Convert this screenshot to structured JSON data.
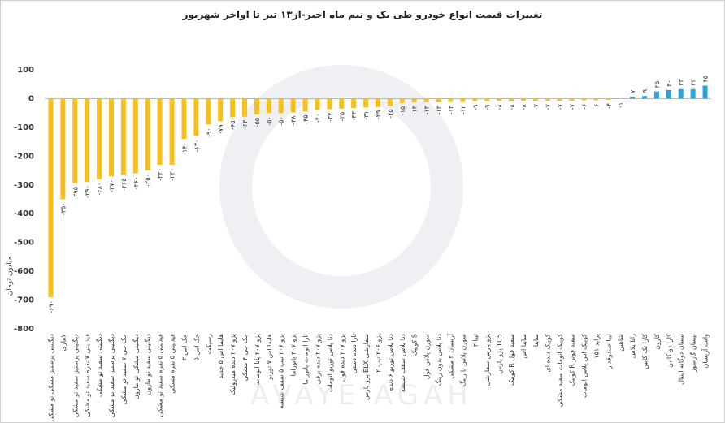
{
  "chart_data": {
    "type": "bar",
    "title": "تغییرات قیمت انواع خودرو طی یک و نیم ماه اخیر-از۱۳ تیر تا اواخر شهریور",
    "y_label": "میلیون تومان",
    "watermark": "AVAYE AGAH",
    "categories": [
      "دیگنیتی پرستیژ مشکی تو مشکی",
      "لاماری",
      "دیگنیتی پرستیژ سفید تو مشکی",
      "فیدلیتی ۷ نفره سفید تو مشکی",
      "دیگنیتی سفید تو مشکی",
      "دیگنیتی پرستیژ سفید تو مشکی",
      "جک جی ۷ سفید تو مشکی",
      "دیگنیتی مشکی تو مازون",
      "دیگنیتی سفید تو مازون",
      "فیدلیتی ۵ نفره سفید تو مشکی",
      "فیدلیتی ۵ نفره مشکی",
      "جک اس ۳",
      "جک اس ۵",
      "رسپکت",
      "هایما اس ۵ جدید",
      "پژو ۲۰۷ دنده هیدرولیک",
      "جک جی ۴ مشکی",
      "پژو ۲۰۷ پانا اتومات",
      "هایما اس ۷ توربو",
      "پژو ۲۰۶ تیپ ۵ سقف شیشه",
      "پژو ۲۰۷ پانوراما",
      "تارا اتومات پانوراما",
      "پژو ۲۰۷ دنده برقی",
      "دنا پلاس توربو اتومات",
      "پژو ۲۰۷ دنده قول",
      "تارا دنده دستی",
      "پژو پارس ELX سفارشی",
      "پژو ۲۰۶ تیپ ۲",
      "دنا پلاس توربو ۶ دنده",
      "دنا پلاس سقف شیشه",
      "کوییک S",
      "سورن پلاس فول",
      "دنا پلاس بدون رینگ",
      "آریسان ۲ مشکی",
      "سورن پلاس با رینگ",
      "تیبا ۲",
      "پژو پارس سفارشی",
      "پژو پارس TU5",
      "کوییک R سفید فول",
      "ساینا اس",
      "ساینا",
      "کوییک دنده ای",
      "کوییک اتومات سفید مشکی",
      "کوییک R سفید فوتر",
      "کوییک اس پلاس اتومات",
      "پراید ۱۵۱",
      "تیبا صندوقدار",
      "شاهین",
      "رانا پلاس",
      "کارا تک کابین",
      "کارون",
      "کارا دو کابین",
      "نیسان دوگانه اینتال",
      "نیسان گازسوز",
      "وانت آریسان"
    ],
    "values": [
      -690,
      -350,
      -295,
      -290,
      -280,
      -270,
      -265,
      -260,
      -250,
      -230,
      -230,
      -140,
      -130,
      -90,
      -79,
      -65,
      -63,
      -55,
      -50,
      -50,
      -48,
      -45,
      -40,
      -37,
      -35,
      -33,
      -31,
      -29,
      -25,
      -15,
      -13,
      -13,
      -13,
      -12,
      -12,
      -9,
      -9,
      -8,
      -8,
      -8,
      -7,
      -7,
      -7,
      -7,
      -6,
      -6,
      -4,
      -1,
      7,
      9,
      25,
      30,
      33,
      33,
      45
    ],
    "value_labels": [
      "-۶۹۰",
      "-۳۵۰",
      "-۲۹۵",
      "-۲۹۰",
      "-۲۸۰",
      "-۲۷۰",
      "-۲۶۵",
      "-۲۶۰",
      "-۲۵۰",
      "-۲۳۰",
      "-۲۳۰",
      "-۱۴۰",
      "-۱۳۰",
      "-۹۰",
      "-۷۹",
      "-۶۵",
      "-۶۳",
      "-۵۵",
      "-۵۰",
      "-۵۰",
      "-۴۸",
      "-۴۵",
      "-۴۰",
      "-۳۷",
      "-۳۵",
      "-۳۳",
      "-۳۱",
      "-۲۹",
      "-۲۵",
      "-۱۵",
      "-۱۳",
      "-۱۳",
      "-۱۳",
      "-۱۲",
      "-۱۲",
      "-۹",
      "-۹",
      "-۸",
      "-۸",
      "-۸",
      "-۷",
      "-۷",
      "-۷",
      "-۷",
      "-۶",
      "-۶",
      "-۴",
      "-۱",
      "۷",
      "۹",
      "۲۵",
      "۳۰",
      "۳۳",
      "۳۳",
      "۴۵"
    ],
    "color": "#f7bf1b",
    "positive_color": "#2ea3db",
    "ylim": [
      -800,
      100
    ],
    "yticks": [
      100,
      0,
      -100,
      -200,
      -300,
      -400,
      -500,
      -600,
      -700,
      -800
    ],
    "grid": false
  }
}
